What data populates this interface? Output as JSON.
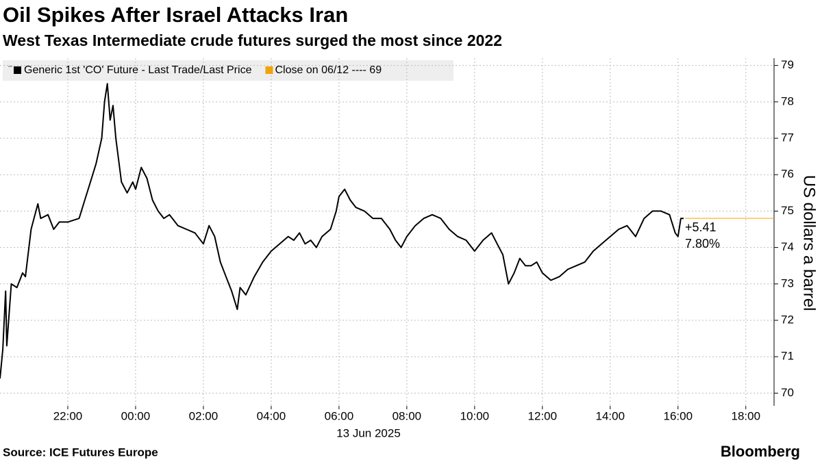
{
  "chart_data": {
    "type": "line",
    "title": "Oil Spikes After Israel Attacks Iran",
    "subtitle": "West Texas Intermediate crude futures surged the most since 2022",
    "source": "Source: ICE Futures Europe",
    "brand": "Bloomberg",
    "y_label": "US dollars a barrel",
    "x_label": "13 Jun 2025",
    "legend": [
      "Generic 1st 'CO' Future - Last Trade/Last Price",
      "Close on 06/12 ---- 69"
    ],
    "legend_colors": [
      "#000000",
      "#f0a30a"
    ],
    "annotations": [
      "+5.41",
      "7.80%"
    ],
    "annotation_color": "#f0a30a",
    "grid": true,
    "xlim": [
      "2025-06-12T20:00",
      "2025-06-13T18:50"
    ],
    "xticks": [
      {
        "value": "2025-06-12T22:00",
        "label": "22:00"
      },
      {
        "value": "2025-06-13T00:00",
        "label": "00:00"
      },
      {
        "value": "2025-06-13T02:00",
        "label": "02:00"
      },
      {
        "value": "2025-06-13T04:00",
        "label": "04:00"
      },
      {
        "value": "2025-06-13T06:00",
        "label": "06:00"
      },
      {
        "value": "2025-06-13T08:00",
        "label": "08:00"
      },
      {
        "value": "2025-06-13T10:00",
        "label": "10:00"
      },
      {
        "value": "2025-06-13T12:00",
        "label": "12:00"
      },
      {
        "value": "2025-06-13T14:00",
        "label": "14:00"
      },
      {
        "value": "2025-06-13T16:00",
        "label": "16:00"
      },
      {
        "value": "2025-06-13T18:00",
        "label": "18:00"
      }
    ],
    "ylim": [
      69.65,
      79.2
    ],
    "yticks": [
      70,
      71,
      72,
      73,
      74,
      75,
      76,
      77,
      78,
      79
    ],
    "x": [
      "2025-06-12T20:00",
      "2025-06-12T20:05",
      "2025-06-12T20:10",
      "2025-06-12T20:12",
      "2025-06-12T20:20",
      "2025-06-12T20:30",
      "2025-06-12T20:40",
      "2025-06-12T20:45",
      "2025-06-12T20:55",
      "2025-06-12T21:07",
      "2025-06-12T21:12",
      "2025-06-12T21:25",
      "2025-06-12T21:35",
      "2025-06-12T21:45",
      "2025-06-12T22:00",
      "2025-06-12T22:20",
      "2025-06-12T22:30",
      "2025-06-12T22:40",
      "2025-06-12T22:50",
      "2025-06-12T23:00",
      "2025-06-12T23:05",
      "2025-06-12T23:10",
      "2025-06-12T23:15",
      "2025-06-12T23:20",
      "2025-06-12T23:25",
      "2025-06-12T23:30",
      "2025-06-12T23:35",
      "2025-06-12T23:45",
      "2025-06-12T23:55",
      "2025-06-13T00:00",
      "2025-06-13T00:10",
      "2025-06-13T00:20",
      "2025-06-13T00:30",
      "2025-06-13T00:40",
      "2025-06-13T00:50",
      "2025-06-13T01:00",
      "2025-06-13T01:15",
      "2025-06-13T01:30",
      "2025-06-13T01:45",
      "2025-06-13T02:00",
      "2025-06-13T02:10",
      "2025-06-13T02:20",
      "2025-06-13T02:30",
      "2025-06-13T02:40",
      "2025-06-13T02:50",
      "2025-06-13T03:00",
      "2025-06-13T03:05",
      "2025-06-13T03:15",
      "2025-06-13T03:30",
      "2025-06-13T03:45",
      "2025-06-13T04:00",
      "2025-06-13T04:15",
      "2025-06-13T04:30",
      "2025-06-13T04:40",
      "2025-06-13T04:50",
      "2025-06-13T05:00",
      "2025-06-13T05:10",
      "2025-06-13T05:20",
      "2025-06-13T05:30",
      "2025-06-13T05:45",
      "2025-06-13T05:55",
      "2025-06-13T06:00",
      "2025-06-13T06:10",
      "2025-06-13T06:20",
      "2025-06-13T06:30",
      "2025-06-13T06:45",
      "2025-06-13T07:00",
      "2025-06-13T07:15",
      "2025-06-13T07:30",
      "2025-06-13T07:40",
      "2025-06-13T07:50",
      "2025-06-13T08:00",
      "2025-06-13T08:15",
      "2025-06-13T08:30",
      "2025-06-13T08:45",
      "2025-06-13T09:00",
      "2025-06-13T09:15",
      "2025-06-13T09:30",
      "2025-06-13T09:45",
      "2025-06-13T10:00",
      "2025-06-13T10:15",
      "2025-06-13T10:30",
      "2025-06-13T10:40",
      "2025-06-13T10:50",
      "2025-06-13T11:00",
      "2025-06-13T11:10",
      "2025-06-13T11:20",
      "2025-06-13T11:30",
      "2025-06-13T11:40",
      "2025-06-13T11:50",
      "2025-06-13T12:00",
      "2025-06-13T12:15",
      "2025-06-13T12:30",
      "2025-06-13T12:45",
      "2025-06-13T13:00",
      "2025-06-13T13:15",
      "2025-06-13T13:30",
      "2025-06-13T13:45",
      "2025-06-13T14:00",
      "2025-06-13T14:15",
      "2025-06-13T14:30",
      "2025-06-13T14:45",
      "2025-06-13T15:00",
      "2025-06-13T15:15",
      "2025-06-13T15:30",
      "2025-06-13T15:45",
      "2025-06-13T15:55",
      "2025-06-13T16:00",
      "2025-06-13T16:05",
      "2025-06-13T16:10"
    ],
    "series": [
      {
        "name": "Generic 1st 'CO' Future - Last Trade/Last Price",
        "color": "#000000",
        "values": [
          70.4,
          71.2,
          72.8,
          71.3,
          73.0,
          72.9,
          73.3,
          73.2,
          74.5,
          75.2,
          74.8,
          74.9,
          74.5,
          74.7,
          74.7,
          74.8,
          75.3,
          75.8,
          76.3,
          77.0,
          78.0,
          78.5,
          77.5,
          77.9,
          77.0,
          76.4,
          75.8,
          75.5,
          75.8,
          75.6,
          76.2,
          75.9,
          75.3,
          75.0,
          74.8,
          74.9,
          74.6,
          74.5,
          74.4,
          74.1,
          74.6,
          74.3,
          73.6,
          73.2,
          72.8,
          72.3,
          72.9,
          72.7,
          73.2,
          73.6,
          73.9,
          74.1,
          74.3,
          74.2,
          74.4,
          74.1,
          74.2,
          74.0,
          74.3,
          74.5,
          75.0,
          75.4,
          75.6,
          75.3,
          75.1,
          75.0,
          74.8,
          74.8,
          74.5,
          74.2,
          74.0,
          74.3,
          74.6,
          74.8,
          74.9,
          74.8,
          74.5,
          74.3,
          74.2,
          73.9,
          74.2,
          74.4,
          74.1,
          73.8,
          73.0,
          73.3,
          73.7,
          73.5,
          73.5,
          73.6,
          73.3,
          73.1,
          73.2,
          73.4,
          73.5,
          73.6,
          73.9,
          74.1,
          74.3,
          74.5,
          74.6,
          74.3,
          74.8,
          75.0,
          75.0,
          74.9,
          74.4,
          74.3,
          74.8,
          74.8
        ]
      }
    ]
  }
}
